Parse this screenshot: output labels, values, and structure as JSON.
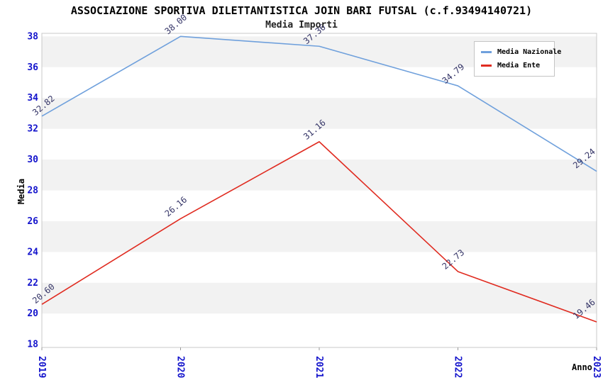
{
  "chart_data": {
    "type": "line",
    "title": "ASSOCIAZIONE SPORTIVA DILETTANTISTICA JOIN BARI FUTSAL (c.f.93494140721)",
    "subtitle": "Media Importi",
    "xlabel": "Anno",
    "ylabel": "Media",
    "x": [
      "2019",
      "2020",
      "2021",
      "2022",
      "2023"
    ],
    "series": [
      {
        "name": "Media Nazionale",
        "color": "#6FA0DC",
        "values": [
          32.82,
          38.0,
          37.36,
          34.79,
          29.24
        ]
      },
      {
        "name": "Media Ente",
        "color": "#E02B20",
        "values": [
          20.6,
          26.16,
          31.16,
          22.73,
          19.46
        ]
      }
    ],
    "ylim": [
      18,
      38
    ],
    "yticks": [
      18,
      20,
      22,
      24,
      26,
      28,
      30,
      32,
      34,
      36,
      38
    ],
    "grid": "alternating horizontal bands",
    "legend_position": "top-right",
    "colors": {
      "tick_label": "#1414CC",
      "point_label": "#333366",
      "band": "#F2F2F2",
      "plot_border": "#C8C8C8",
      "background": "#FFFFFF"
    }
  }
}
